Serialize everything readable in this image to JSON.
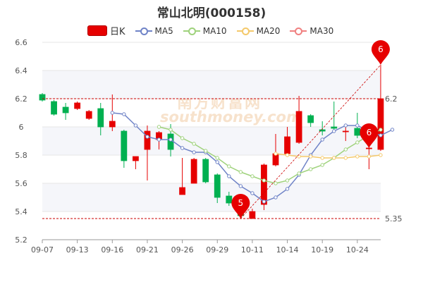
{
  "header": {
    "title": "常山北明(000158)"
  },
  "legend": {
    "k_label": "日K",
    "ma5": "MA5",
    "ma10": "MA10",
    "ma20": "MA20",
    "ma30": "MA30"
  },
  "colors": {
    "up": "#e60000",
    "down": "#00b050",
    "ma5": "#6f83c7",
    "ma10": "#9fd27c",
    "ma20": "#f4c96b",
    "ma30": "#f08080",
    "ref_line": "#cc0000",
    "marker": "#e60000"
  },
  "watermark": {
    "cn": "南方财富网",
    "en": "southmoney.com"
  },
  "chart_data": {
    "type": "candlestick",
    "ylim": [
      5.2,
      6.6
    ],
    "y_ticks": [
      "5.2",
      "5.4",
      "5.6",
      "5.8",
      "6",
      "6.2",
      "6.4",
      "6.6"
    ],
    "x_tick_labels": [
      {
        "index": 0,
        "label": "09-07"
      },
      {
        "index": 3,
        "label": "09-13"
      },
      {
        "index": 6,
        "label": "09-16"
      },
      {
        "index": 9,
        "label": "09-21"
      },
      {
        "index": 12,
        "label": "09-26"
      },
      {
        "index": 15,
        "label": "09-29"
      },
      {
        "index": 18,
        "label": "10-11"
      },
      {
        "index": 21,
        "label": "10-14"
      },
      {
        "index": 24,
        "label": "10-19"
      },
      {
        "index": 27,
        "label": "10-24"
      }
    ],
    "candles": [
      {
        "o": 6.23,
        "c": 6.19,
        "h": 6.24,
        "l": 6.18
      },
      {
        "o": 6.18,
        "c": 6.09,
        "h": 6.19,
        "l": 6.08
      },
      {
        "o": 6.14,
        "c": 6.1,
        "h": 6.17,
        "l": 6.05
      },
      {
        "o": 6.13,
        "c": 6.17,
        "h": 6.18,
        "l": 6.12
      },
      {
        "o": 6.06,
        "c": 6.11,
        "h": 6.12,
        "l": 6.05
      },
      {
        "o": 6.13,
        "c": 6.0,
        "h": 6.17,
        "l": 5.94
      },
      {
        "o": 6.0,
        "c": 6.04,
        "h": 6.23,
        "l": 5.97
      },
      {
        "o": 5.97,
        "c": 5.76,
        "h": 5.98,
        "l": 5.71
      },
      {
        "o": 5.76,
        "c": 5.79,
        "h": 5.79,
        "l": 5.7
      },
      {
        "o": 5.84,
        "c": 5.97,
        "h": 6.01,
        "l": 5.62
      },
      {
        "o": 5.91,
        "c": 5.96,
        "h": 5.97,
        "l": 5.84
      },
      {
        "o": 5.95,
        "c": 5.84,
        "h": 6.02,
        "l": 5.79
      },
      {
        "o": 5.52,
        "c": 5.57,
        "h": 5.78,
        "l": 5.52
      },
      {
        "o": 5.6,
        "c": 5.77,
        "h": 5.78,
        "l": 5.6
      },
      {
        "o": 5.77,
        "c": 5.61,
        "h": 5.78,
        "l": 5.6
      },
      {
        "o": 5.66,
        "c": 5.5,
        "h": 5.67,
        "l": 5.46
      },
      {
        "o": 5.51,
        "c": 5.46,
        "h": 5.54,
        "l": 5.44
      },
      {
        "o": 5.45,
        "c": 5.37,
        "h": 5.47,
        "l": 5.35
      },
      {
        "o": 5.35,
        "c": 5.4,
        "h": 5.42,
        "l": 5.35
      },
      {
        "o": 5.45,
        "c": 5.73,
        "h": 5.74,
        "l": 5.41
      },
      {
        "o": 5.73,
        "c": 5.81,
        "h": 5.95,
        "l": 5.72
      },
      {
        "o": 5.81,
        "c": 5.93,
        "h": 6.0,
        "l": 5.8
      },
      {
        "o": 5.89,
        "c": 6.11,
        "h": 6.22,
        "l": 5.88
      },
      {
        "o": 6.08,
        "c": 6.03,
        "h": 6.09,
        "l": 6.0
      },
      {
        "o": 5.98,
        "c": 5.97,
        "h": 6.04,
        "l": 5.94
      },
      {
        "o": 6.0,
        "c": 5.99,
        "h": 6.18,
        "l": 5.98
      },
      {
        "o": 5.97,
        "c": 5.97,
        "h": 6.01,
        "l": 5.9
      },
      {
        "o": 5.99,
        "c": 5.94,
        "h": 6.1,
        "l": 5.92
      },
      {
        "o": 5.85,
        "c": 5.85,
        "h": 5.94,
        "l": 5.7
      },
      {
        "o": 5.84,
        "c": 6.2,
        "h": 6.44,
        "l": 5.83
      }
    ],
    "series": [
      {
        "name": "MA5",
        "start": 6,
        "values": [
          6.1,
          6.09,
          6.01,
          5.93,
          5.91,
          5.91,
          5.85,
          5.82,
          5.82,
          5.75,
          5.65,
          5.58,
          5.53,
          5.47,
          5.5,
          5.56,
          5.66,
          5.8,
          5.91,
          5.97,
          6.01,
          6.01,
          5.97,
          5.94,
          5.98
        ]
      },
      {
        "name": "MA10",
        "start": 10,
        "values": [
          6.0,
          5.98,
          5.92,
          5.88,
          5.83,
          5.78,
          5.72,
          5.68,
          5.65,
          5.62,
          5.6,
          5.62,
          5.67,
          5.7,
          5.73,
          5.78,
          5.84,
          5.89,
          5.94,
          5.98
        ]
      },
      {
        "name": "MA20",
        "start": 20,
        "values": [
          5.81,
          5.8,
          5.79,
          5.79,
          5.78,
          5.78,
          5.78,
          5.79,
          5.79,
          5.8
        ]
      }
    ],
    "reference_lines": [
      {
        "value": 6.2,
        "label": "6.2"
      },
      {
        "value": 5.35,
        "label": "5.35"
      }
    ],
    "markers": [
      {
        "index": 17,
        "value": 5.35,
        "label": "5"
      },
      {
        "index": 28,
        "value": 5.85,
        "label": "6"
      },
      {
        "index": 29,
        "value": 6.44,
        "label": "6"
      }
    ]
  }
}
